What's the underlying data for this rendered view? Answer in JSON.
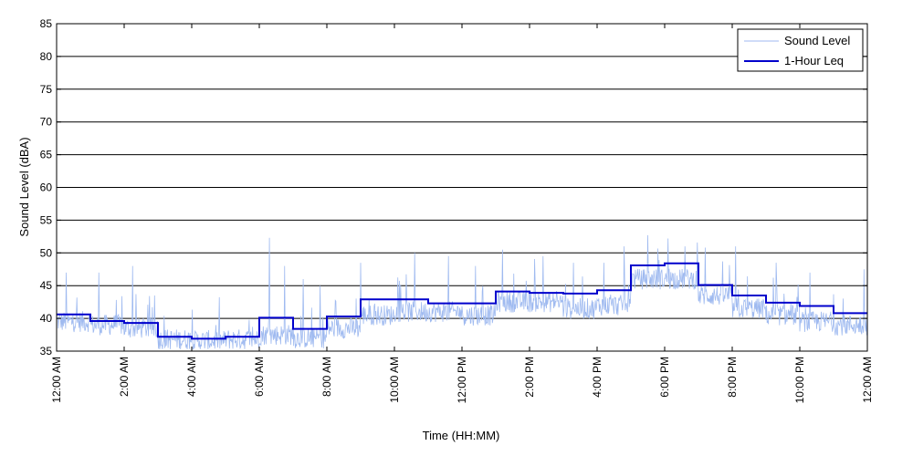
{
  "chart_data": {
    "type": "line",
    "xlabel": "Time (HH:MM)",
    "ylabel": "Sound Level (dBA)",
    "xlim": [
      0,
      24
    ],
    "ylim": [
      35,
      85
    ],
    "y_ticks": [
      35,
      40,
      45,
      50,
      55,
      60,
      65,
      70,
      75,
      80,
      85
    ],
    "x_ticks": [
      {
        "hour": 0,
        "label": "12:00 AM"
      },
      {
        "hour": 2,
        "label": "2:00 AM"
      },
      {
        "hour": 4,
        "label": "4:00 AM"
      },
      {
        "hour": 6,
        "label": "6:00 AM"
      },
      {
        "hour": 8,
        "label": "8:00 AM"
      },
      {
        "hour": 10,
        "label": "10:00 AM"
      },
      {
        "hour": 12,
        "label": "12:00 PM"
      },
      {
        "hour": 14,
        "label": "2:00 PM"
      },
      {
        "hour": 16,
        "label": "4:00 PM"
      },
      {
        "hour": 18,
        "label": "6:00 PM"
      },
      {
        "hour": 20,
        "label": "8:00 PM"
      },
      {
        "hour": 22,
        "label": "10:00 PM"
      },
      {
        "hour": 24,
        "label": "12:00 AM"
      }
    ],
    "grid": "horizontal",
    "legend_position": "top-right",
    "series": [
      {
        "name": "Sound Level",
        "kind": "raw",
        "color": "#9fbaf0",
        "description_hourly_baseline": [
          39.5,
          39.0,
          38.5,
          36.8,
          36.6,
          36.8,
          37.5,
          37.0,
          38.5,
          40.5,
          41.0,
          41.0,
          40.5,
          42.5,
          42.5,
          41.5,
          42.0,
          46.0,
          46.0,
          43.5,
          41.5,
          40.5,
          39.5,
          39.0
        ],
        "spikes": [
          {
            "hour": 0.28,
            "value": 47
          },
          {
            "hour": 1.25,
            "value": 47
          },
          {
            "hour": 2.25,
            "value": 48
          },
          {
            "hour": 2.9,
            "value": 43.5
          },
          {
            "hour": 6.3,
            "value": 52.3
          },
          {
            "hour": 6.75,
            "value": 48
          },
          {
            "hour": 7.3,
            "value": 46
          },
          {
            "hour": 7.8,
            "value": 45
          },
          {
            "hour": 9.0,
            "value": 48.5
          },
          {
            "hour": 10.6,
            "value": 50
          },
          {
            "hour": 11.6,
            "value": 49.5
          },
          {
            "hour": 12.4,
            "value": 48
          },
          {
            "hour": 13.2,
            "value": 50.5
          },
          {
            "hour": 14.4,
            "value": 49.5
          },
          {
            "hour": 15.3,
            "value": 48.5
          },
          {
            "hour": 16.2,
            "value": 48.5
          },
          {
            "hour": 16.8,
            "value": 51
          },
          {
            "hour": 17.5,
            "value": 52.7
          },
          {
            "hour": 18.1,
            "value": 52.2
          },
          {
            "hour": 18.6,
            "value": 51
          },
          {
            "hour": 19.2,
            "value": 50.8
          },
          {
            "hour": 20.1,
            "value": 51
          },
          {
            "hour": 21.3,
            "value": 48.5
          },
          {
            "hour": 22.3,
            "value": 47
          },
          {
            "hour": 23.9,
            "value": 47.5
          }
        ]
      },
      {
        "name": "1-Hour Leq",
        "kind": "step",
        "color": "#0000cc",
        "hours": [
          0,
          1,
          2,
          3,
          4,
          5,
          6,
          7,
          8,
          9,
          10,
          11,
          12,
          13,
          14,
          15,
          16,
          17,
          18,
          19,
          20,
          21,
          22,
          23
        ],
        "values": [
          40.6,
          39.6,
          39.3,
          37.2,
          36.9,
          37.2,
          40.1,
          38.4,
          40.3,
          42.9,
          42.9,
          42.3,
          42.3,
          44.1,
          43.9,
          43.8,
          44.3,
          48.1,
          48.4,
          45.1,
          43.5,
          42.4,
          41.9,
          40.8
        ]
      }
    ]
  }
}
